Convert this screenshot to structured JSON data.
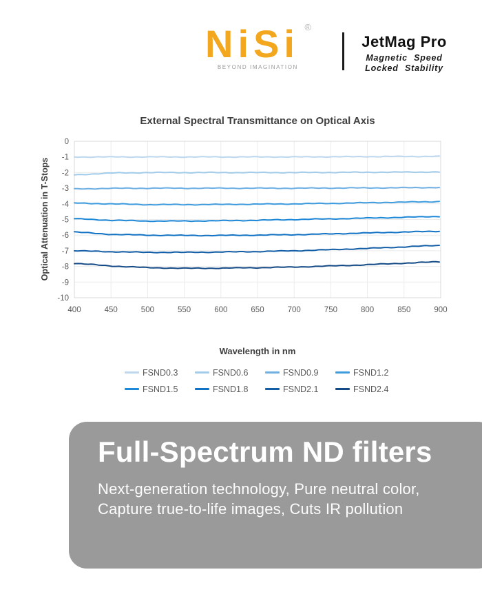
{
  "header": {
    "logo": {
      "text": "NiSi",
      "registered": "®",
      "tagline": "BEYOND IMAGINATION",
      "color": "#F2A71F"
    },
    "product": {
      "name": "JetMag Pro",
      "line1": "Magnetic Speed",
      "line2": "Locked Stability"
    }
  },
  "chart_data": {
    "type": "line",
    "title": "External Spectral Transmittance on Optical Axis",
    "xlabel": "Wavelength in nm",
    "ylabel": "Optical Attenuation in T-Stops",
    "x": [
      400,
      450,
      500,
      550,
      600,
      650,
      700,
      750,
      800,
      850,
      900
    ],
    "xlim": [
      400,
      900
    ],
    "ylim": [
      -10,
      0
    ],
    "y_ticks": [
      0,
      -1,
      -2,
      -3,
      -4,
      -5,
      -6,
      -7,
      -8,
      -9,
      -10
    ],
    "grid": true,
    "legend_position": "bottom",
    "series": [
      {
        "name": "FSND0.3",
        "color": "#BDD7EE",
        "values": [
          -1.0,
          -1.0,
          -1.0,
          -1.0,
          -1.0,
          -1.0,
          -1.0,
          -0.99,
          -0.98,
          -0.97,
          -0.96
        ]
      },
      {
        "name": "FSND0.6",
        "color": "#A3CBEA",
        "values": [
          -2.15,
          -2.03,
          -2.0,
          -2.0,
          -2.0,
          -2.0,
          -2.0,
          -1.99,
          -1.98,
          -1.97,
          -1.96
        ]
      },
      {
        "name": "FSND0.9",
        "color": "#6FB0E4",
        "values": [
          -3.05,
          -3.01,
          -3.0,
          -3.0,
          -3.0,
          -3.0,
          -3.0,
          -2.99,
          -2.98,
          -2.97,
          -2.95
        ]
      },
      {
        "name": "FSND1.2",
        "color": "#3D9BDE",
        "values": [
          -3.95,
          -4.0,
          -4.05,
          -4.05,
          -4.04,
          -4.02,
          -4.0,
          -3.97,
          -3.93,
          -3.89,
          -3.85
        ]
      },
      {
        "name": "FSND1.5",
        "color": "#1D87D8",
        "values": [
          -4.95,
          -5.05,
          -5.1,
          -5.1,
          -5.08,
          -5.05,
          -5.0,
          -4.96,
          -4.91,
          -4.86,
          -4.8
        ]
      },
      {
        "name": "FSND1.8",
        "color": "#1272C4",
        "values": [
          -5.8,
          -5.95,
          -6.0,
          -6.02,
          -6.02,
          -6.0,
          -5.97,
          -5.92,
          -5.86,
          -5.8,
          -5.75
        ]
      },
      {
        "name": "FSND2.1",
        "color": "#135EA6",
        "values": [
          -7.0,
          -7.06,
          -7.1,
          -7.1,
          -7.08,
          -7.05,
          -7.0,
          -6.93,
          -6.85,
          -6.75,
          -6.65
        ]
      },
      {
        "name": "FSND2.4",
        "color": "#144B86",
        "values": [
          -7.8,
          -7.97,
          -8.08,
          -8.12,
          -8.11,
          -8.08,
          -8.04,
          -7.97,
          -7.89,
          -7.79,
          -7.7
        ]
      }
    ],
    "axis_text_color": "#595959",
    "gridline_color": "#EBEBEB",
    "plot_border_color": "#D9D9D9"
  },
  "banner": {
    "heading": "Full-Spectrum ND filters",
    "body": "Next-generation technology, Pure neutral color, Capture true-to-life images, Cuts IR pollution",
    "background": "#9A9A9A"
  }
}
